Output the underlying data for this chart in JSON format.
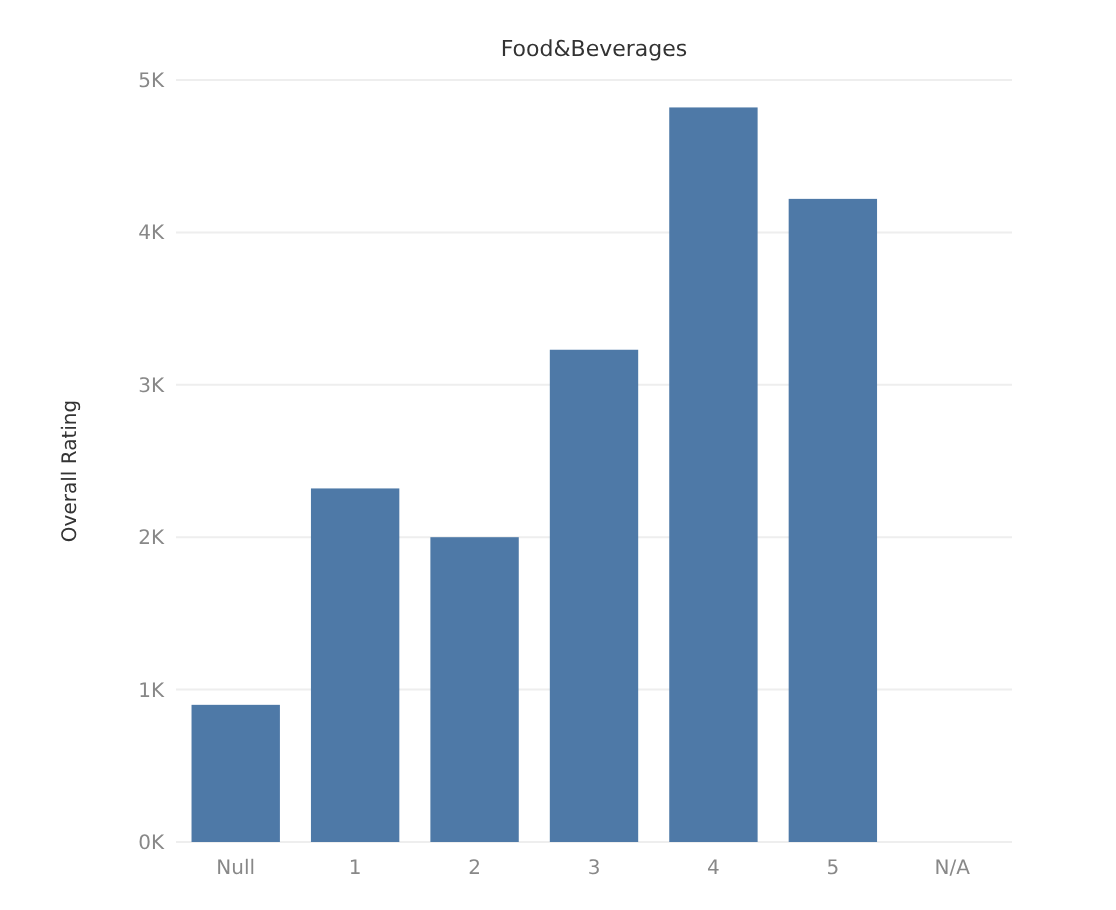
{
  "chart_data": {
    "type": "bar",
    "title": "Food&Beverages",
    "ylabel": "Overall Rating",
    "categories": [
      "Null",
      "1",
      "2",
      "3",
      "4",
      "5",
      "N/A"
    ],
    "values": [
      900,
      2320,
      2000,
      3230,
      4820,
      4220,
      null
    ],
    "color": "#4e79a7",
    "ylim": [
      0,
      5000
    ],
    "yticks": [
      {
        "value": 0,
        "label": "0K"
      },
      {
        "value": 1000,
        "label": "1K"
      },
      {
        "value": 2000,
        "label": "2K"
      },
      {
        "value": 3000,
        "label": "3K"
      },
      {
        "value": 4000,
        "label": "4K"
      },
      {
        "value": 5000,
        "label": "5K"
      }
    ],
    "grid": "y"
  }
}
